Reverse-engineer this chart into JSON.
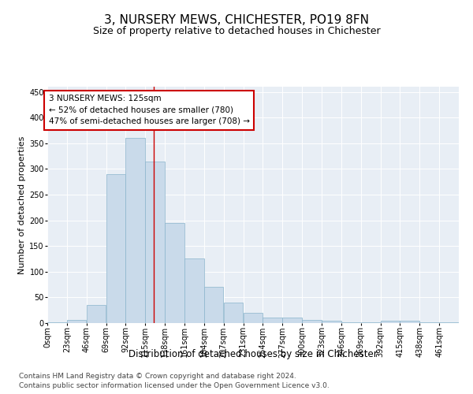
{
  "title": "3, NURSERY MEWS, CHICHESTER, PO19 8FN",
  "subtitle": "Size of property relative to detached houses in Chichester",
  "xlabel": "Distribution of detached houses by size in Chichester",
  "ylabel": "Number of detached properties",
  "bar_labels": [
    "0sqm",
    "23sqm",
    "46sqm",
    "69sqm",
    "92sqm",
    "115sqm",
    "138sqm",
    "161sqm",
    "184sqm",
    "207sqm",
    "231sqm",
    "254sqm",
    "277sqm",
    "300sqm",
    "323sqm",
    "346sqm",
    "369sqm",
    "392sqm",
    "415sqm",
    "438sqm",
    "461sqm"
  ],
  "bar_values": [
    2,
    6,
    35,
    290,
    360,
    315,
    195,
    125,
    70,
    40,
    20,
    11,
    10,
    6,
    4,
    2,
    1,
    5,
    4,
    2,
    1
  ],
  "bar_color": "#c9daea",
  "bar_edge_color": "#8ab4cc",
  "property_line_x": 125,
  "bin_width": 23,
  "annotation_text": "3 NURSERY MEWS: 125sqm\n← 52% of detached houses are smaller (780)\n47% of semi-detached houses are larger (708) →",
  "annotation_box_color": "#ffffff",
  "annotation_box_edge": "#cc0000",
  "vline_color": "#cc0000",
  "ylim": [
    0,
    460
  ],
  "yticks": [
    0,
    50,
    100,
    150,
    200,
    250,
    300,
    350,
    400,
    450
  ],
  "bg_color": "#e8eef5",
  "footer_line1": "Contains HM Land Registry data © Crown copyright and database right 2024.",
  "footer_line2": "Contains public sector information licensed under the Open Government Licence v3.0.",
  "title_fontsize": 11,
  "subtitle_fontsize": 9,
  "xlabel_fontsize": 8.5,
  "ylabel_fontsize": 8,
  "tick_fontsize": 7,
  "annotation_fontsize": 7.5,
  "footer_fontsize": 6.5
}
